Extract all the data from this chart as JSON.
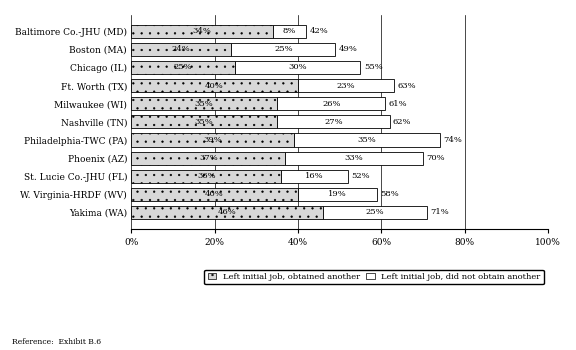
{
  "categories": [
    "Baltimore Co.-JHU (MD)",
    "Boston (MA)",
    "Chicago (IL)",
    "Ft. Worth (TX)",
    "Milwaukee (WI)",
    "Nashville (TN)",
    "Philadelphia-TWC (PA)",
    "Phoenix (AZ)",
    "St. Lucie Co.-JHU (FL)",
    "W. Virginia-HRDF (WV)",
    "Yakima (WA)"
  ],
  "obtained_another": [
    34,
    24,
    25,
    40,
    35,
    35,
    39,
    37,
    36,
    40,
    46
  ],
  "did_not_obtain": [
    8,
    25,
    30,
    23,
    26,
    27,
    35,
    33,
    16,
    19,
    25
  ],
  "total": [
    42,
    49,
    55,
    63,
    61,
    62,
    74,
    70,
    52,
    58,
    71
  ],
  "obtained_color": "#d8d8d8",
  "did_not_color": "#ffffff",
  "bar_height": 0.72,
  "xlim": [
    0,
    100
  ],
  "xticks": [
    0,
    20,
    40,
    60,
    80,
    100
  ],
  "xtick_labels": [
    "0%",
    "20%",
    "40%",
    "60%",
    "80%",
    "100%"
  ],
  "reference_text": "Reference:  Exhibit B.6",
  "legend1": "Left initial job, obtained another",
  "legend2": "Left initial job, did not obtain another",
  "background_color": "#ffffff",
  "hatch_obtained": "..",
  "hatch_did_not": "",
  "label_fontsize": 6.0,
  "tick_fontsize": 6.5,
  "ytick_fontsize": 6.5,
  "ref_fontsize": 5.5,
  "legend_fontsize": 6.0
}
